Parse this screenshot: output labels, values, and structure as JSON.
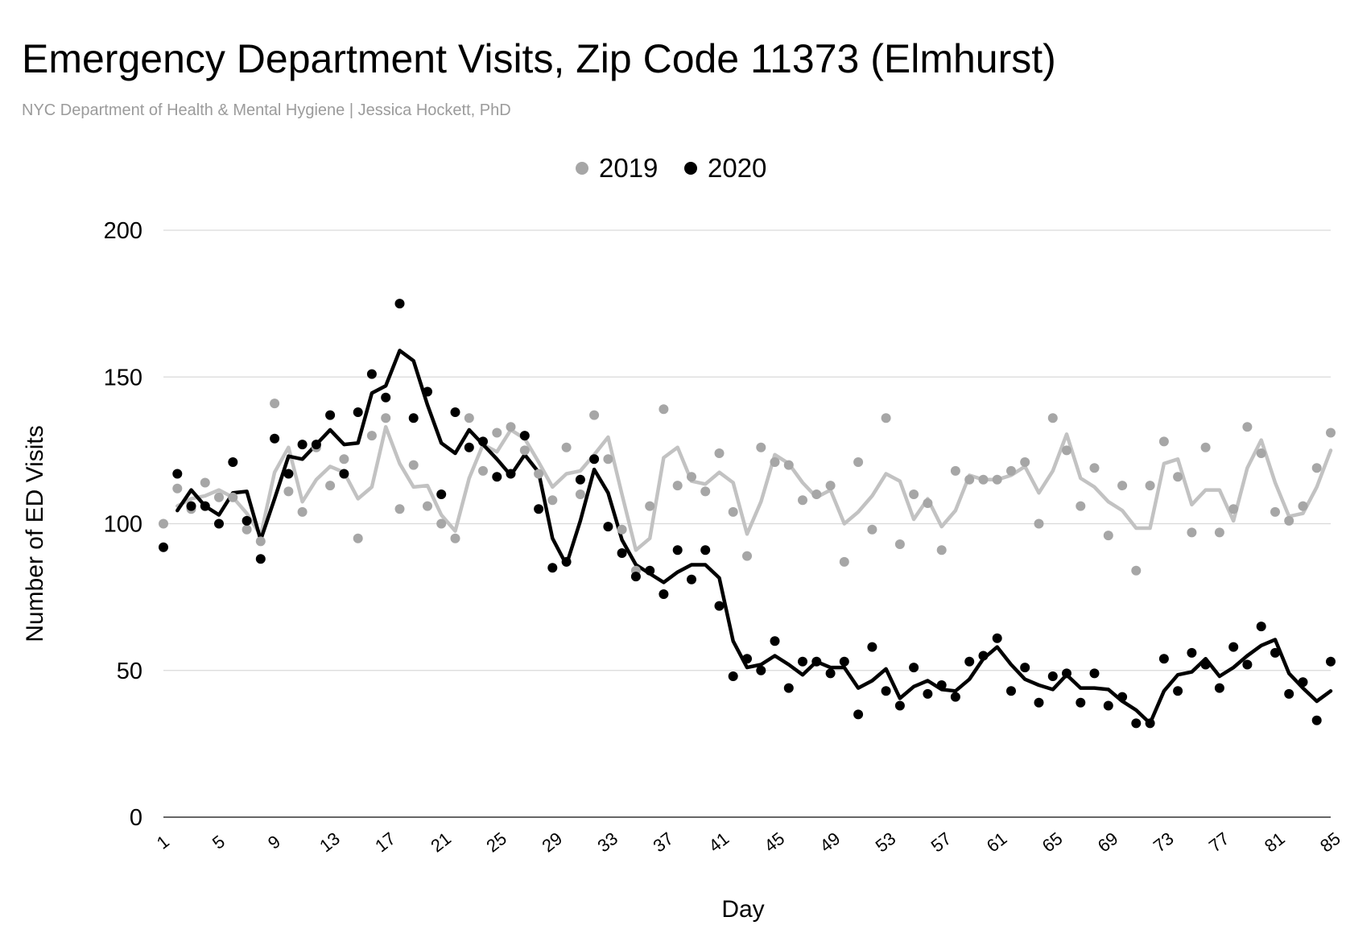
{
  "title": "Emergency Department Visits, Zip Code 11373 (Elmhurst)",
  "subtitle": "NYC Department of Health & Mental Hygiene | Jessica Hockett, PhD",
  "colors": {
    "series_2019": "#a6a6a6",
    "line_2019": "#c2c2c2",
    "series_2020": "#000000",
    "grid": "#d9d9d9"
  },
  "chart_data": {
    "type": "scatter",
    "title": "Emergency Department Visits, Zip Code 11373 (Elmhurst)",
    "subtitle": "NYC Department of Health & Mental Hygiene | Jessica Hockett, PhD",
    "xlabel": "Day",
    "ylabel": "Number of ED Visits",
    "xlim": [
      1,
      85
    ],
    "ylim": [
      0,
      200
    ],
    "yticks": [
      0,
      50,
      100,
      150,
      200
    ],
    "xticks": [
      1,
      5,
      9,
      13,
      17,
      21,
      25,
      29,
      33,
      37,
      41,
      45,
      49,
      53,
      57,
      61,
      65,
      69,
      73,
      77,
      81,
      85
    ],
    "legend": {
      "position": "top",
      "entries": [
        "2019",
        "2020"
      ]
    },
    "trendline": "2-day moving average",
    "series": [
      {
        "name": "2019",
        "values": [
          100,
          112,
          105,
          114,
          109,
          109,
          98,
          94,
          141,
          111,
          104,
          126,
          113,
          122,
          95,
          130,
          136,
          105,
          120,
          106,
          100,
          95,
          136,
          118,
          131,
          133,
          125,
          117,
          108,
          126,
          110,
          137,
          122,
          98,
          84,
          106,
          139,
          113,
          116,
          111,
          124,
          104,
          89,
          126,
          121,
          120,
          108,
          110,
          113,
          87,
          121,
          98,
          136,
          93,
          110,
          107,
          91,
          118,
          115,
          115,
          115,
          118,
          121,
          100,
          136,
          125,
          106,
          119,
          96,
          113,
          84,
          113,
          128,
          116,
          97,
          126,
          97,
          105,
          133,
          124,
          104,
          101,
          106,
          119,
          131
        ]
      },
      {
        "name": "2020",
        "values": [
          92,
          117,
          106,
          106,
          100,
          121,
          101,
          88,
          129,
          117,
          127,
          127,
          137,
          117,
          138,
          151,
          143,
          175,
          136,
          145,
          110,
          138,
          126,
          128,
          116,
          117,
          130,
          105,
          85,
          87,
          115,
          122,
          99,
          90,
          82,
          84,
          76,
          91,
          81,
          91,
          72,
          48,
          54,
          50,
          60,
          44,
          53,
          53,
          49,
          53,
          35,
          58,
          43,
          38,
          51,
          42,
          45,
          41,
          53,
          55,
          61,
          43,
          51,
          39,
          48,
          49,
          39,
          49,
          38,
          41,
          32,
          32,
          54,
          43,
          56,
          52,
          44,
          58,
          52,
          65,
          56,
          42,
          46,
          33,
          53
        ]
      }
    ]
  }
}
